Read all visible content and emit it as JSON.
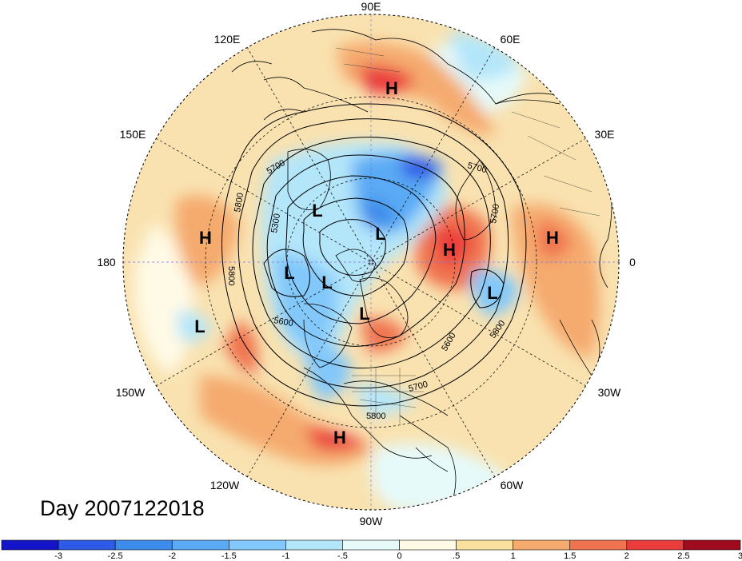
{
  "map": {
    "projection": "north-polar-stereographic",
    "day_label": "Day 2007122018",
    "longitude_labels": [
      {
        "lon": 90,
        "text": "90E"
      },
      {
        "lon": 120,
        "text": "120E"
      },
      {
        "lon": 60,
        "text": "60E"
      },
      {
        "lon": 150,
        "text": "150E"
      },
      {
        "lon": 30,
        "text": "30E"
      },
      {
        "lon": 180,
        "text": "180"
      },
      {
        "lon": 0,
        "text": "0"
      },
      {
        "lon": -150,
        "text": "150W"
      },
      {
        "lon": -30,
        "text": "30W"
      },
      {
        "lon": -120,
        "text": "120W"
      },
      {
        "lon": -60,
        "text": "60W"
      },
      {
        "lon": -90,
        "text": "90W"
      }
    ],
    "contour_labels": [
      "5700",
      "5800",
      "5300",
      "5800",
      "5600",
      "5600",
      "5800",
      "5700",
      "5800",
      "5700",
      "5700"
    ],
    "high_low_markers": [
      {
        "type": "H",
        "text": "H"
      },
      {
        "type": "H",
        "text": "H"
      },
      {
        "type": "H",
        "text": "H"
      },
      {
        "type": "H",
        "text": "H"
      },
      {
        "type": "H",
        "text": "H"
      },
      {
        "type": "L",
        "text": "L"
      },
      {
        "type": "L",
        "text": "L"
      },
      {
        "type": "L",
        "text": "L"
      },
      {
        "type": "L",
        "text": "L"
      },
      {
        "type": "L",
        "text": "L"
      },
      {
        "type": "L",
        "text": "L"
      },
      {
        "type": "L",
        "text": "L"
      }
    ],
    "colorbar": {
      "tick_labels": [
        "-3",
        "-2.5",
        "-2",
        "-1.5",
        "-1",
        "-.5",
        "0",
        ".5",
        "1",
        "1.5",
        "2",
        "2.5",
        "3"
      ],
      "colors": [
        "#1414c8",
        "#2d5ae6",
        "#3c8ceb",
        "#5aaaf5",
        "#82c8fa",
        "#b4e6fa",
        "#e6fafa",
        "#fffae6",
        "#fae1a0",
        "#f5aa6e",
        "#f07350",
        "#eb3c3c",
        "#a00a1e"
      ]
    }
  }
}
